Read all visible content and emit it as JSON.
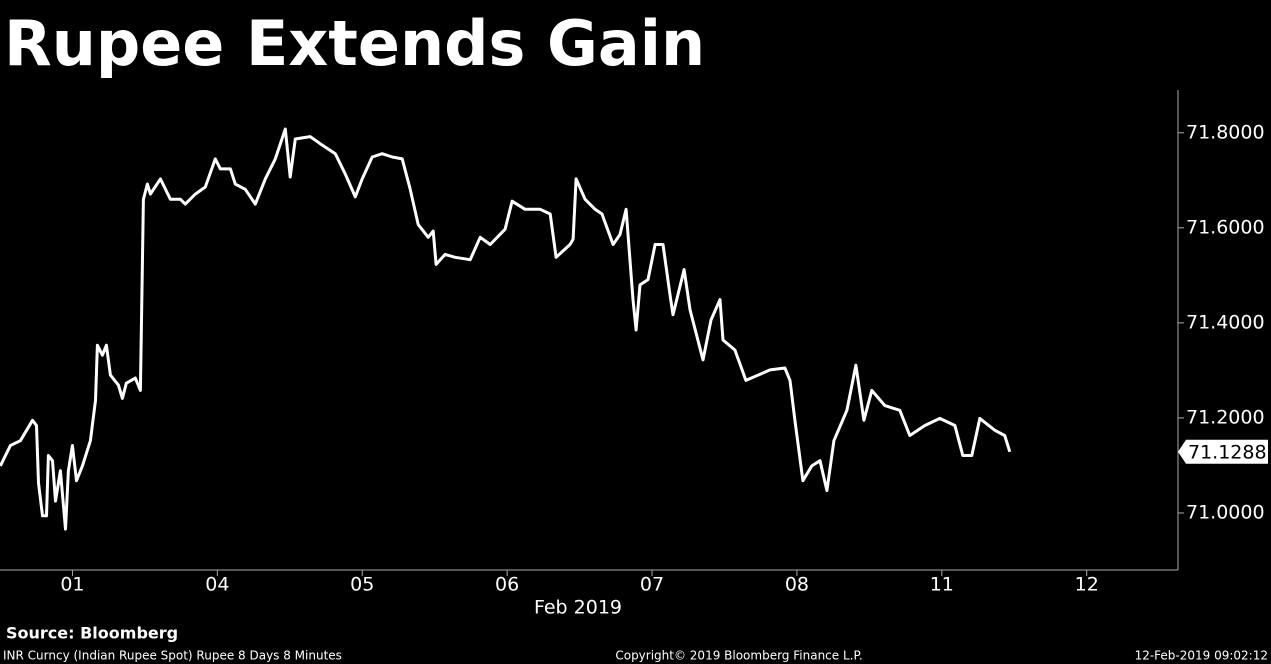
{
  "chart_data": {
    "type": "line",
    "title": "Rupee Extends Gain",
    "xlabel": "Feb 2019",
    "source": "Source: Bloomberg",
    "xlim": [
      -0.5,
      7.63
    ],
    "ylim": [
      70.88,
      71.89
    ],
    "xticks": [
      {
        "value": 0,
        "label": "01"
      },
      {
        "value": 1,
        "label": "04"
      },
      {
        "value": 2,
        "label": "05"
      },
      {
        "value": 3,
        "label": "06"
      },
      {
        "value": 4,
        "label": "07"
      },
      {
        "value": 5,
        "label": "08"
      },
      {
        "value": 6,
        "label": "11"
      },
      {
        "value": 7,
        "label": "12"
      }
    ],
    "yticks": [
      {
        "value": 71.0,
        "label": "71.0000"
      },
      {
        "value": 71.2,
        "label": "71.2000"
      },
      {
        "value": 71.4,
        "label": "71.4000"
      },
      {
        "value": 71.6,
        "label": "71.6000"
      },
      {
        "value": 71.8,
        "label": "71.8000"
      }
    ],
    "series": [
      {
        "name": "INR Curncy",
        "color": "#ffffff",
        "x": [
          -0.497,
          -0.428,
          -0.359,
          -0.276,
          -0.248,
          -0.234,
          -0.207,
          -0.179,
          -0.166,
          -0.138,
          -0.117,
          -0.083,
          -0.048,
          -0.028,
          0,
          0.028,
          0.069,
          0.124,
          0.159,
          0.172,
          0.207,
          0.234,
          0.262,
          0.317,
          0.345,
          0.372,
          0.434,
          0.469,
          0.49,
          0.517,
          0.538,
          0.607,
          0.676,
          0.745,
          0.779,
          0.848,
          0.917,
          0.986,
          1.021,
          1.09,
          1.124,
          1.193,
          1.262,
          1.331,
          1.4,
          1.469,
          1.503,
          1.538,
          1.641,
          1.71,
          1.814,
          1.883,
          1.952,
          2.0,
          2.069,
          2.138,
          2.207,
          2.276,
          2.331,
          2.386,
          2.455,
          2.49,
          2.51,
          2.572,
          2.641,
          2.745,
          2.814,
          2.883,
          2.986,
          3.034,
          3.124,
          3.228,
          3.297,
          3.338,
          3.434,
          3.455,
          3.476,
          3.538,
          3.607,
          3.655,
          3.731,
          3.779,
          3.821,
          3.869,
          3.89,
          3.917,
          3.972,
          4.021,
          4.076,
          4.124,
          4.145,
          4.221,
          4.262,
          4.352,
          4.407,
          4.469,
          4.49,
          4.572,
          4.648,
          4.814,
          4.917,
          4.952,
          4.986,
          5.041,
          5.103,
          5.159,
          5.207,
          5.255,
          5.345,
          5.407,
          5.462,
          5.517,
          5.607,
          5.71,
          5.779,
          5.883,
          5.986,
          6.09,
          6.145,
          6.207,
          6.262,
          6.366,
          6.434,
          6.469
        ],
        "values": [
          71.099,
          71.142,
          71.152,
          71.195,
          71.184,
          71.063,
          70.994,
          70.994,
          71.121,
          71.11,
          71.025,
          71.089,
          70.966,
          71.089,
          71.142,
          71.068,
          71.099,
          71.152,
          71.237,
          71.353,
          71.332,
          71.353,
          71.29,
          71.269,
          71.241,
          71.273,
          71.284,
          71.258,
          71.66,
          71.692,
          71.671,
          71.703,
          71.66,
          71.66,
          71.65,
          71.671,
          71.686,
          71.745,
          71.724,
          71.724,
          71.692,
          71.681,
          71.65,
          71.703,
          71.745,
          71.808,
          71.707,
          71.787,
          71.792,
          71.777,
          71.756,
          71.713,
          71.665,
          71.703,
          71.749,
          71.756,
          71.749,
          71.745,
          71.681,
          71.607,
          71.58,
          71.593,
          71.523,
          71.544,
          71.538,
          71.533,
          71.58,
          71.565,
          71.597,
          71.656,
          71.639,
          71.639,
          71.629,
          71.538,
          71.565,
          71.576,
          71.703,
          71.66,
          71.639,
          71.629,
          71.565,
          71.586,
          71.639,
          71.449,
          71.385,
          71.48,
          71.491,
          71.565,
          71.565,
          71.459,
          71.417,
          71.512,
          71.428,
          71.322,
          71.406,
          71.449,
          71.364,
          71.343,
          71.279,
          71.301,
          71.305,
          71.279,
          71.195,
          71.068,
          71.099,
          71.11,
          71.047,
          71.152,
          71.216,
          71.311,
          71.195,
          71.258,
          71.226,
          71.216,
          71.163,
          71.184,
          71.199,
          71.184,
          71.121,
          71.121,
          71.199,
          71.174,
          71.163,
          71.1288
        ]
      }
    ]
  },
  "footer": {
    "left": "INR Curncy (Indian Rupee Spot) Rupee 8 Days 8 Minutes",
    "center": "Copyright© 2019 Bloomberg Finance L.P.",
    "right": "12-Feb-2019 09:02:12"
  }
}
